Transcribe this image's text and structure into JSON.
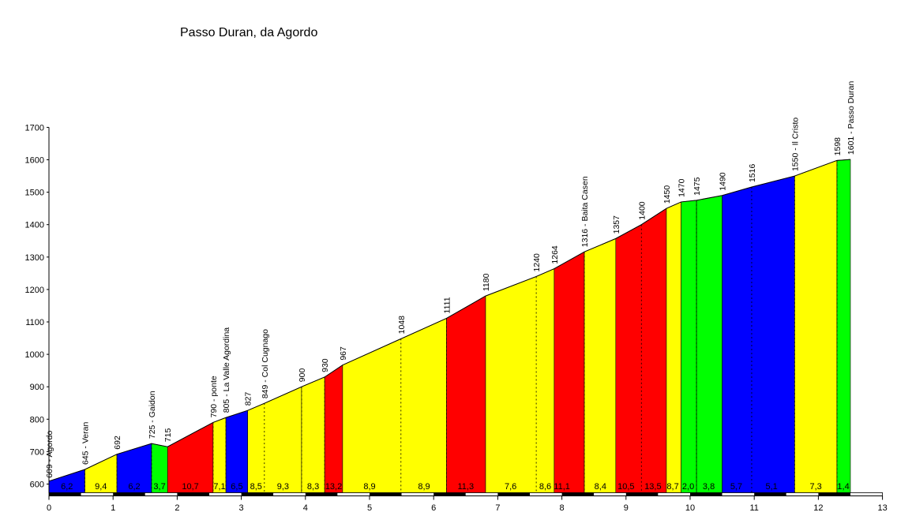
{
  "chart_data": {
    "type": "area",
    "title": "Passo Duran, da Agordo",
    "xlabel": "",
    "ylabel": "",
    "xlim": [
      0,
      13
    ],
    "ylim": [
      580,
      1700
    ],
    "x_ticks": [
      "0",
      "1",
      "2",
      "3",
      "4",
      "5",
      "6",
      "7",
      "8",
      "9",
      "10",
      "11",
      "12",
      "13"
    ],
    "y_ticks": [
      "600",
      "700",
      "800",
      "900",
      "1000",
      "1100",
      "1200",
      "1300",
      "1400",
      "1500",
      "1600",
      "1700"
    ],
    "grid": false,
    "colors": {
      "green": "#00ff00",
      "yellow": "#ffff00",
      "blue": "#0000ff",
      "red": "#ff0000"
    },
    "points": [
      {
        "x": 0.0,
        "y": 609,
        "label": "609 - Agordo"
      },
      {
        "x": 0.56,
        "y": 645,
        "label": "645 - Veran"
      },
      {
        "x": 1.06,
        "y": 692,
        "label": "692"
      },
      {
        "x": 1.6,
        "y": 725,
        "label": "725 - Gaidon"
      },
      {
        "x": 1.85,
        "y": 715,
        "label": "715"
      },
      {
        "x": 2.56,
        "y": 790,
        "label": "790 - ponte"
      },
      {
        "x": 2.76,
        "y": 805,
        "label": "805 - La Valle Agordina"
      },
      {
        "x": 3.1,
        "y": 827,
        "label": "827"
      },
      {
        "x": 3.36,
        "y": 849,
        "label": "849 - Col Cugnago"
      },
      {
        "x": 3.94,
        "y": 900,
        "label": "900"
      },
      {
        "x": 4.3,
        "y": 930,
        "label": "930"
      },
      {
        "x": 4.58,
        "y": 967,
        "label": "967"
      },
      {
        "x": 5.49,
        "y": 1048,
        "label": "1048"
      },
      {
        "x": 6.2,
        "y": 1111,
        "label": "1111"
      },
      {
        "x": 6.81,
        "y": 1180,
        "label": "1180"
      },
      {
        "x": 7.6,
        "y": 1240,
        "label": "1240"
      },
      {
        "x": 7.88,
        "y": 1264,
        "label": "1264"
      },
      {
        "x": 8.35,
        "y": 1316,
        "label": "1316 - Baita Casen"
      },
      {
        "x": 8.84,
        "y": 1357,
        "label": "1357"
      },
      {
        "x": 9.24,
        "y": 1400,
        "label": "1400"
      },
      {
        "x": 9.63,
        "y": 1450,
        "label": "1450"
      },
      {
        "x": 9.86,
        "y": 1470,
        "label": "1470"
      },
      {
        "x": 10.1,
        "y": 1475,
        "label": "1475"
      },
      {
        "x": 10.5,
        "y": 1490,
        "label": "1490"
      },
      {
        "x": 10.96,
        "y": 1516,
        "label": "1516"
      },
      {
        "x": 11.63,
        "y": 1550,
        "label": "1550 - Il Cristo"
      },
      {
        "x": 12.29,
        "y": 1598,
        "label": "1598"
      },
      {
        "x": 12.5,
        "y": 1601,
        "label": "1601 - Passo Duran"
      }
    ],
    "sections": [
      {
        "from": 0.0,
        "to": 0.56,
        "gradient": "6,2",
        "color": "blue"
      },
      {
        "from": 0.56,
        "to": 1.06,
        "gradient": "9,4",
        "color": "yellow"
      },
      {
        "from": 1.06,
        "to": 1.6,
        "gradient": "6,2",
        "color": "blue"
      },
      {
        "from": 1.6,
        "to": 1.85,
        "gradient": "3,7",
        "color": "green"
      },
      {
        "from": 1.85,
        "to": 2.56,
        "gradient": "10,7",
        "color": "red"
      },
      {
        "from": 2.56,
        "to": 2.76,
        "gradient": "7,1",
        "color": "yellow"
      },
      {
        "from": 2.76,
        "to": 3.1,
        "gradient": "6,5",
        "color": "blue"
      },
      {
        "from": 3.1,
        "to": 3.94,
        "gradient": "8,5",
        "color": "yellow"
      },
      {
        "from": 3.94,
        "to": 4.3,
        "gradient": "8,3",
        "color": "yellow"
      },
      {
        "from": 4.3,
        "to": 4.58,
        "gradient": "13,2",
        "color": "red"
      },
      {
        "from": 4.58,
        "to": 6.2,
        "gradient": "8,9",
        "color": "yellow"
      },
      {
        "from": 6.2,
        "to": 6.81,
        "gradient": "11,3",
        "color": "red"
      },
      {
        "from": 6.81,
        "to": 7.88,
        "gradient": "7,6",
        "color": "yellow"
      },
      {
        "from": 7.88,
        "to": 8.35,
        "gradient": "11,1",
        "color": "red"
      },
      {
        "from": 8.35,
        "to": 8.84,
        "gradient": "8,4",
        "color": "yellow"
      },
      {
        "from": 8.84,
        "to": 9.63,
        "gradient": "10,5",
        "color": "red"
      },
      {
        "from": 9.63,
        "to": 9.86,
        "gradient": "8,7",
        "color": "yellow"
      },
      {
        "from": 9.86,
        "to": 10.1,
        "gradient": "2,0",
        "color": "green"
      },
      {
        "from": 10.1,
        "to": 10.5,
        "gradient": "3,8",
        "color": "green"
      },
      {
        "from": 10.5,
        "to": 11.63,
        "gradient": "5,7",
        "color": "blue"
      },
      {
        "from": 11.63,
        "to": 12.29,
        "gradient": "7,3",
        "color": "yellow"
      },
      {
        "from": 12.29,
        "to": 12.5,
        "gradient": "1,4",
        "color": "green"
      }
    ],
    "gradient_labels": [
      {
        "x": 0.28,
        "text": "6,2"
      },
      {
        "x": 0.81,
        "text": "9,4"
      },
      {
        "x": 1.33,
        "text": "6,2"
      },
      {
        "x": 1.725,
        "text": "3,7"
      },
      {
        "x": 2.205,
        "text": "10,7"
      },
      {
        "x": 2.66,
        "text": "7,1"
      },
      {
        "x": 2.93,
        "text": "6,5"
      },
      {
        "x": 3.23,
        "text": "8,5"
      },
      {
        "x": 3.65,
        "text": "9,3"
      },
      {
        "x": 4.12,
        "text": "8,3"
      },
      {
        "x": 4.44,
        "text": "13,2"
      },
      {
        "x": 5.0,
        "text": "8,9"
      },
      {
        "x": 5.85,
        "text": "8,9"
      },
      {
        "x": 6.5,
        "text": "11,3"
      },
      {
        "x": 7.2,
        "text": "7,6"
      },
      {
        "x": 7.74,
        "text": "8,6"
      },
      {
        "x": 8.0,
        "text": "11,1"
      },
      {
        "x": 8.6,
        "text": "8,4"
      },
      {
        "x": 9.0,
        "text": "10,5"
      },
      {
        "x": 9.42,
        "text": "13,5"
      },
      {
        "x": 9.73,
        "text": "8,7"
      },
      {
        "x": 9.97,
        "text": "2,0"
      },
      {
        "x": 10.29,
        "text": "3,8"
      },
      {
        "x": 10.72,
        "text": "5,7"
      },
      {
        "x": 11.27,
        "text": "5,1"
      },
      {
        "x": 11.96,
        "text": "7,3"
      },
      {
        "x": 12.39,
        "text": "1,4"
      }
    ],
    "dashed_markers": [
      0.56,
      1.06,
      1.6,
      2.56,
      2.76,
      3.36,
      3.94,
      4.3,
      5.49,
      6.2,
      7.6,
      8.35,
      9.24,
      10.1,
      10.96,
      11.63,
      12.29
    ]
  }
}
